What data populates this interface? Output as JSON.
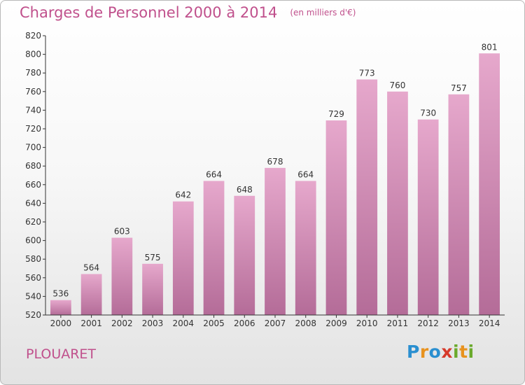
{
  "header": {
    "title": "Charges de Personnel 2000 à 2014",
    "unit": "(en milliers d'€)"
  },
  "footer": {
    "commune": "PLOUARET",
    "logo_text": "Proxiti",
    "logo_letters": [
      {
        "char": "P",
        "color": "#2a8fd0"
      },
      {
        "char": "r",
        "color": "#e8921e"
      },
      {
        "char": "o",
        "color": "#2a8fd0"
      },
      {
        "char": "x",
        "color": "#d63a2b"
      },
      {
        "char": "i",
        "color": "#6aaa2c"
      },
      {
        "char": "t",
        "color": "#e8921e"
      },
      {
        "char": "i",
        "color": "#6aaa2c"
      }
    ]
  },
  "colors": {
    "title": "#c0508c",
    "bar_top": "#e6a8cc",
    "bar_bottom": "#b46c98",
    "axis_text": "#333333"
  },
  "chart_data": {
    "type": "bar",
    "title": "Charges de Personnel 2000 à 2014",
    "xlabel": "",
    "ylabel": "",
    "categories": [
      "2000",
      "2001",
      "2002",
      "2003",
      "2004",
      "2005",
      "2006",
      "2007",
      "2008",
      "2009",
      "2010",
      "2011",
      "2012",
      "2013",
      "2014"
    ],
    "values": [
      536,
      564,
      603,
      575,
      642,
      664,
      648,
      678,
      664,
      729,
      773,
      760,
      730,
      757,
      801
    ],
    "ylim": [
      520,
      820
    ],
    "yticks": [
      520,
      540,
      560,
      580,
      600,
      620,
      640,
      660,
      680,
      700,
      720,
      740,
      760,
      780,
      800,
      820
    ],
    "grid": false,
    "legend": "none"
  }
}
